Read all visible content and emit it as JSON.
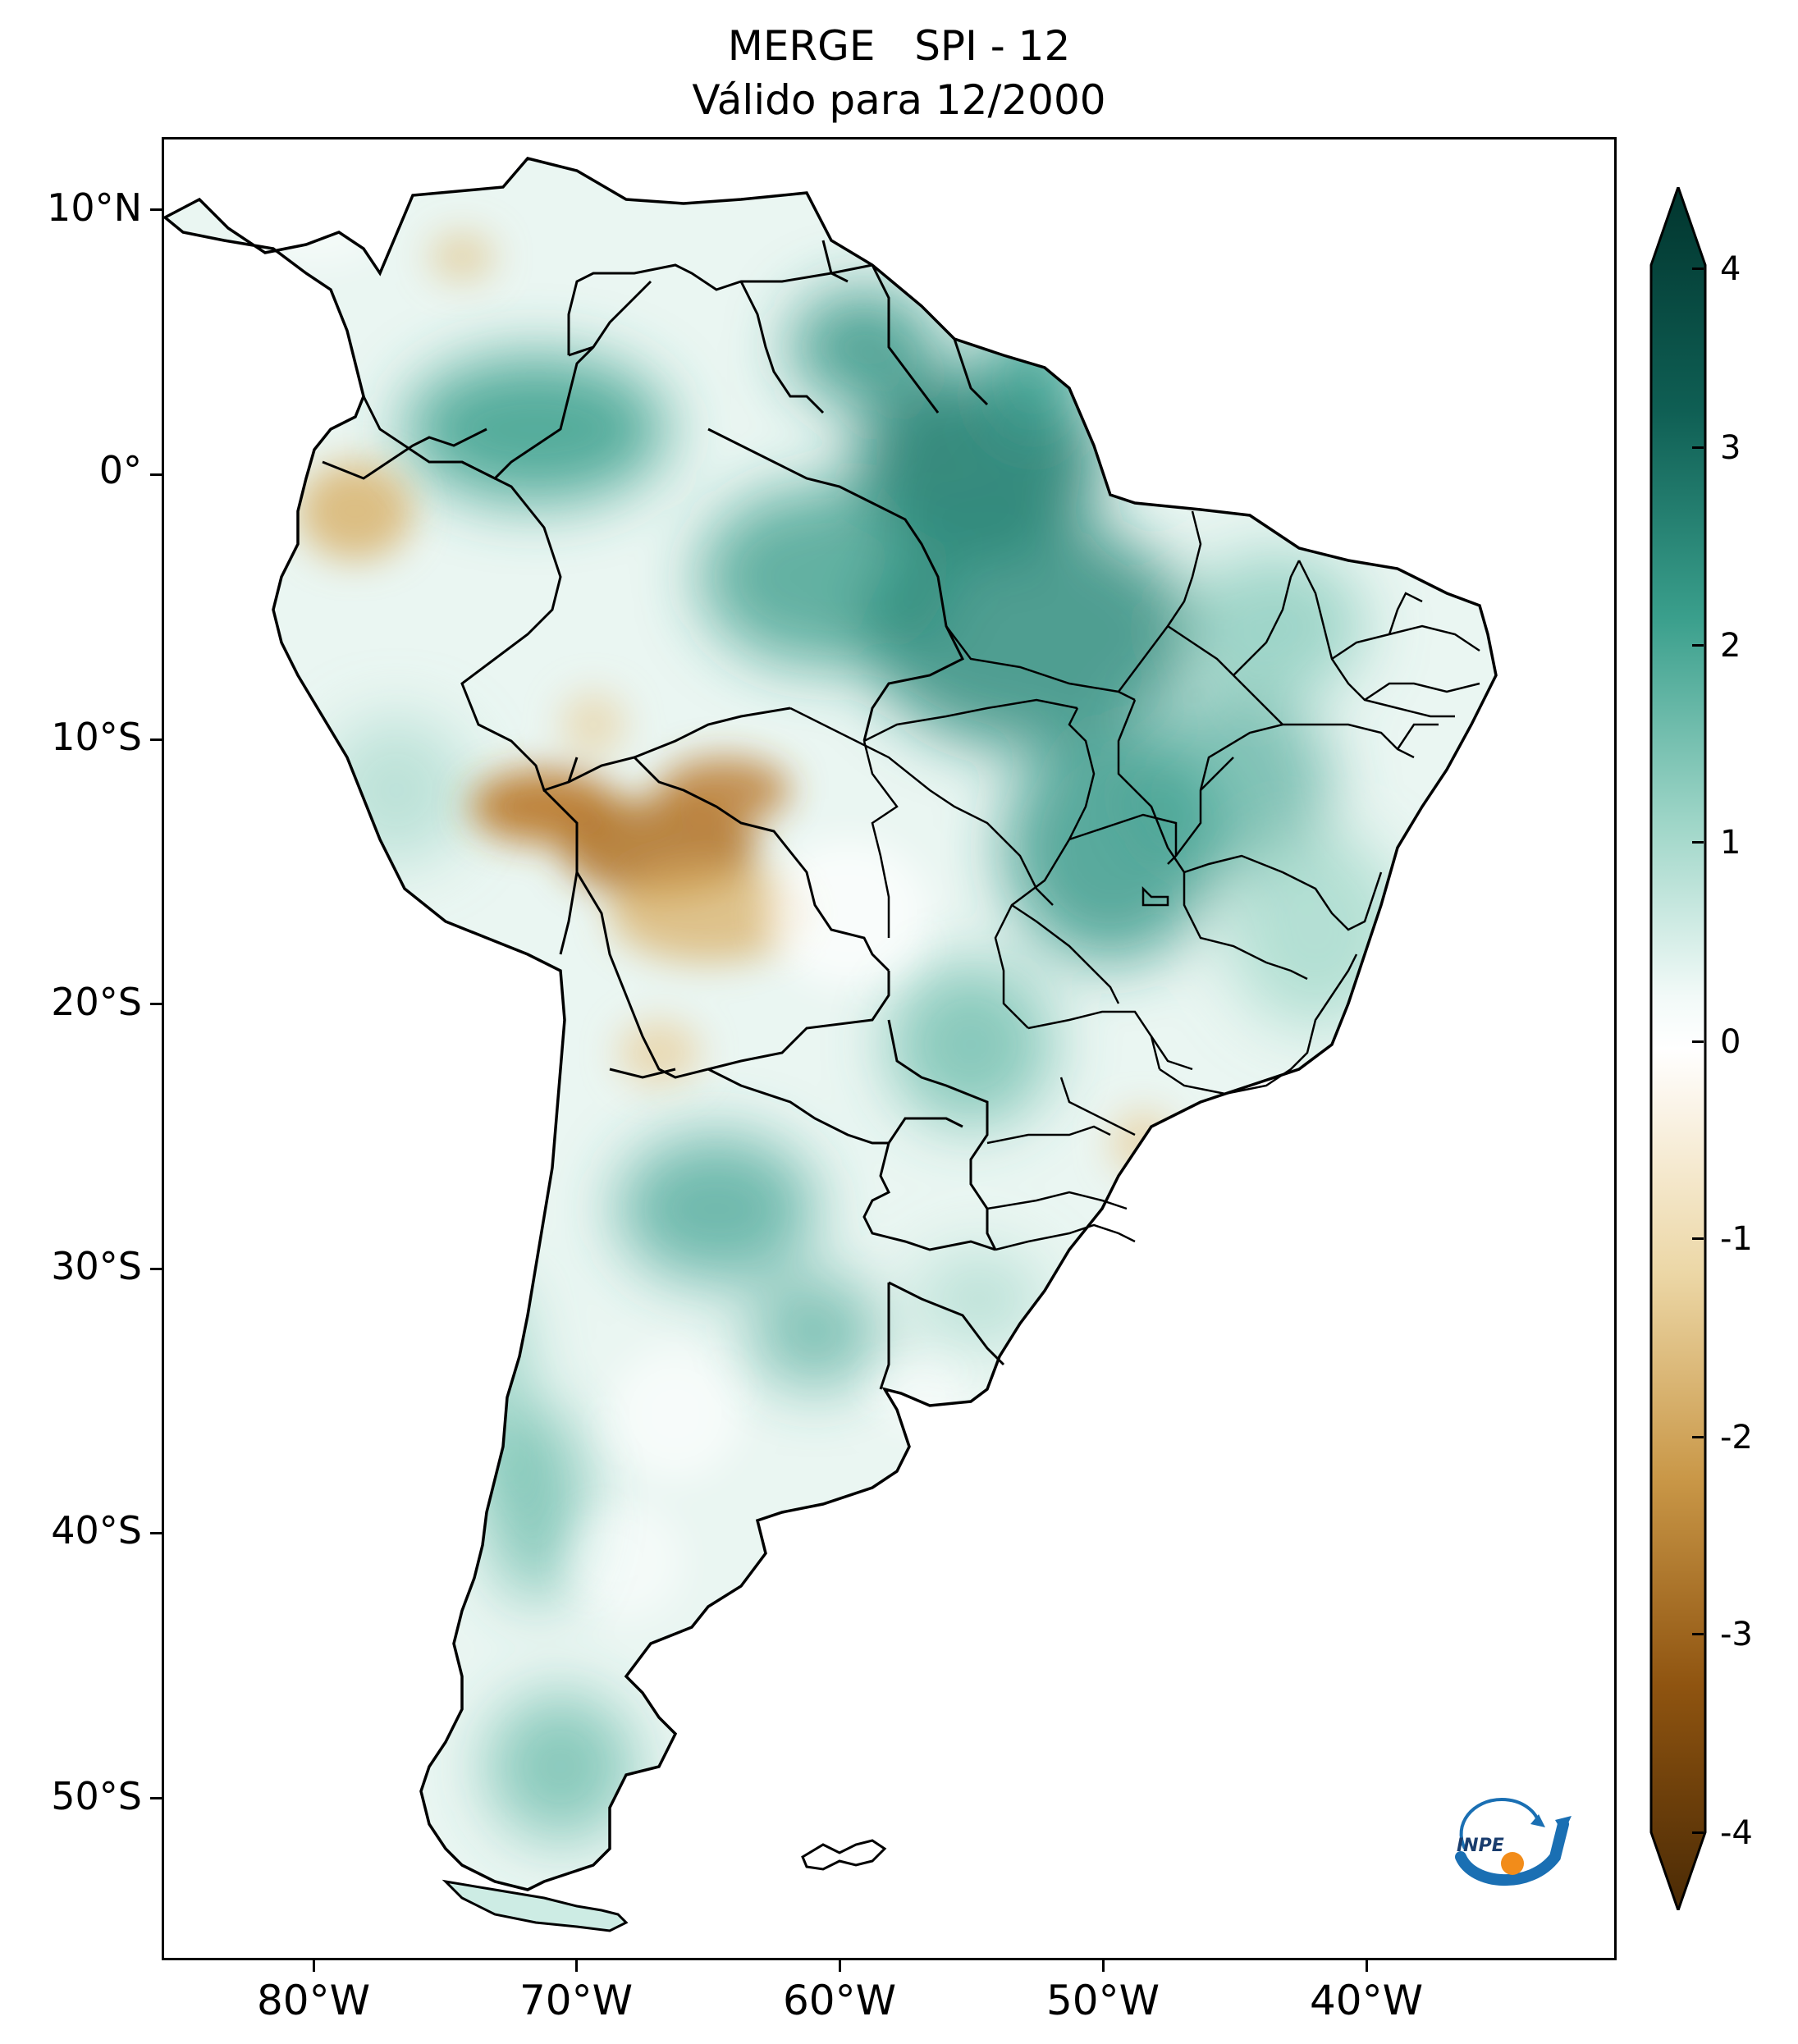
{
  "title": {
    "line1": "MERGE   SPI - 12",
    "line2": "Válido para 12/2000"
  },
  "axes": {
    "lat_labels": [
      "10°N",
      "0°",
      "10°S",
      "20°S",
      "30°S",
      "40°S",
      "50°S"
    ],
    "lon_labels": [
      "80°W",
      "70°W",
      "60°W",
      "50°W",
      "40°W"
    ]
  },
  "colorbar": {
    "ticks": [
      "4",
      "3",
      "2",
      "1",
      "0",
      "-1",
      "-2",
      "-3",
      "-4"
    ],
    "colors": {
      "max": "#01352e",
      "high": "#0f7062",
      "mid_high": "#6fc0ad",
      "low_pos": "#c9ebe3",
      "zero": "#ffffff",
      "low_neg": "#f3e4c2",
      "mid_low": "#d6a75b",
      "low": "#9a5a10",
      "min": "#4a2a05"
    }
  },
  "map": {
    "region": "South America",
    "land_base_color": "#e4f4f0",
    "wet_color": "#1f8a78",
    "dry_color": "#c08a3a",
    "border_color": "#000000"
  },
  "logo": {
    "text": "INPE"
  }
}
